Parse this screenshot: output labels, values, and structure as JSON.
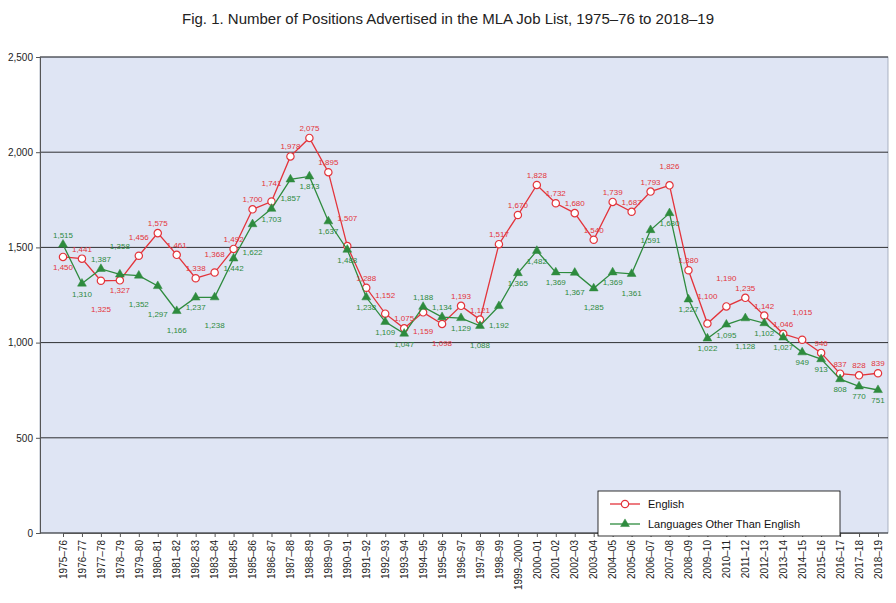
{
  "chart_data": {
    "type": "line",
    "title": "Fig. 1. Number of Positions Advertised in the MLA Job List, 1975–76 to 2018–19",
    "categories": [
      "1975–76",
      "1976–77",
      "1977–78",
      "1978–79",
      "1979–80",
      "1980–81",
      "1981–82",
      "1982–83",
      "1983–84",
      "1984–85",
      "1985–86",
      "1986–87",
      "1987–88",
      "1988–89",
      "1989–90",
      "1990–91",
      "1991–92",
      "1992–93",
      "1993–94",
      "1994–95",
      "1995–96",
      "1996–97",
      "1997–98",
      "1998–99",
      "1999–2000",
      "2000–01",
      "2001–02",
      "2002–03",
      "2003–04",
      "2004–05",
      "2005–06",
      "2006–07",
      "2007–08",
      "2008–09",
      "2009–10",
      "2010–11",
      "2011–12",
      "2012–13",
      "2013–14",
      "2014–15",
      "2015–16",
      "2016–17",
      "2017–18",
      "2018–19"
    ],
    "series": [
      {
        "name": "English",
        "color": "#e3343b",
        "marker": "circle",
        "values": [
          1450,
          1441,
          1325,
          1327,
          1456,
          1575,
          1461,
          1338,
          1368,
          1492,
          1700,
          1741,
          1978,
          2075,
          1895,
          1507,
          1288,
          1152,
          1075,
          1159,
          1098,
          1193,
          1121,
          1517,
          1670,
          1828,
          1732,
          1680,
          1540,
          1739,
          1687,
          1793,
          1826,
          1380,
          1100,
          1190,
          1235,
          1142,
          1046,
          1015,
          946,
          837,
          828,
          839
        ],
        "value_labels": [
          "1,450",
          "1,441",
          "1,325",
          "1,327",
          "1,456",
          "1,575",
          "1,461",
          "1,338",
          "1,368",
          "1,492",
          "1,700",
          "1,741",
          "1,978",
          "2,075",
          "1,895",
          "1,507",
          "1,288",
          "1,152",
          "1,075",
          "1,159",
          "1,098",
          "1,193",
          "1,121",
          "1,517",
          "1,670",
          "1,828",
          "1,732",
          "1,680",
          "1,540",
          "1,739",
          "1,687",
          "1,793",
          "1,826",
          "1,380",
          "1,100",
          "1,190",
          "1,235",
          "1,142",
          "1,046",
          "1,015",
          "946",
          "837",
          "828",
          "839"
        ]
      },
      {
        "name": "Languages Other Than English",
        "color": "#2e8b3e",
        "marker": "triangle",
        "values": [
          1515,
          1310,
          1387,
          1358,
          1352,
          1297,
          1166,
          1237,
          1238,
          1442,
          1622,
          1703,
          1857,
          1873,
          1637,
          1488,
          1238,
          1109,
          1047,
          1188,
          1134,
          1129,
          1088,
          1192,
          1365,
          1482,
          1369,
          1367,
          1285,
          1369,
          1361,
          1591,
          1680,
          1227,
          1022,
          1095,
          1128,
          1102,
          1027,
          949,
          913,
          808,
          770,
          751
        ],
        "value_labels": [
          "1,515",
          "1,310",
          "1,387",
          "1,358",
          "1,352",
          "1,297",
          "1,166",
          "1,237",
          "1,238",
          "1,442",
          "1,622",
          "1,703",
          "1,857",
          "1,873",
          "1,637",
          "1,488",
          "1,238",
          "1,109",
          "1,047",
          "1,188",
          "1,134",
          "1,129",
          "1,088",
          "1,192",
          "1,365",
          "1,482",
          "1,369",
          "1,367",
          "1,285",
          "1,369",
          "1,361",
          "1,591",
          "1,680",
          "1,227",
          "1,022",
          "1,095",
          "1,128",
          "1,102",
          "1,027",
          "949",
          "913",
          "808",
          "770",
          "751"
        ]
      }
    ],
    "ylim": [
      0,
      2500
    ],
    "yticks": [
      0,
      500,
      {
        "value": 1000,
        "label": "1,000"
      },
      {
        "value": 1500,
        "label": "1,500"
      },
      {
        "value": 2000,
        "label": "2,000"
      },
      {
        "value": 2500,
        "label": "2,500"
      }
    ],
    "grid": true,
    "legend": "lower right",
    "data_labels": true
  }
}
